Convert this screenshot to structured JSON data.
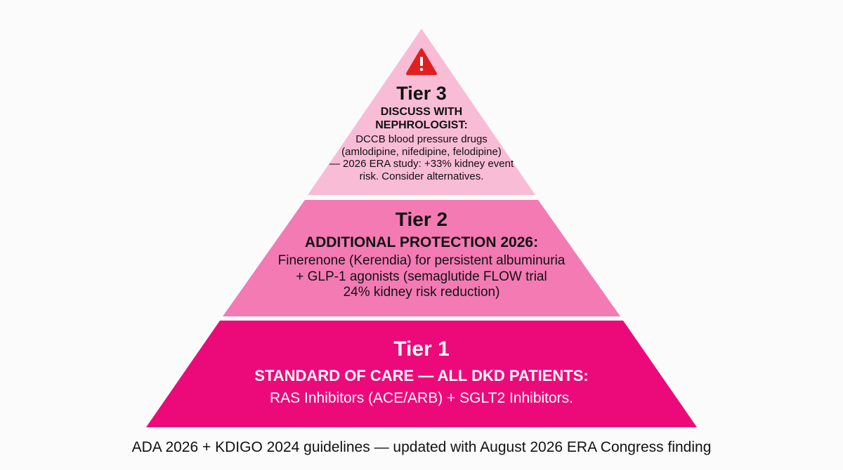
{
  "colors": {
    "background": "#fbfbfb",
    "tier1_fill": "#ec0a7b",
    "tier2_fill": "#f47ab4",
    "tier3_fill": "#f9bcd6",
    "warning_red": "#e02020"
  },
  "tiers": [
    {
      "title": "Tier 1",
      "heading": "STANDARD OF CARE — ALL DKD PATIENTS:",
      "body": "RAS Inhibitors (ACE/ARB) + SGLT2 Inhibitors."
    },
    {
      "title": "Tier 2",
      "heading": "ADDITIONAL PROTECTION 2026:",
      "body": "Finerenone (Kerendia) for persistent albuminuria\n+ GLP-1 agonists (semaglutide FLOW trial\n24% kidney risk reduction)"
    },
    {
      "title": "Tier 3",
      "heading": "DISCUSS WITH\nNEPHROLOGIST:",
      "body": "DCCB blood pressure drugs\n(amlodipine, nifedipine, felodipine)\n— 2026 ERA study: +33% kidney event\nrisk. Consider alternatives.",
      "icon": "warning-icon"
    }
  ],
  "caption": "ADA 2026 + KDIGO 2024 guidelines — updated with August 2026 ERA Congress finding"
}
